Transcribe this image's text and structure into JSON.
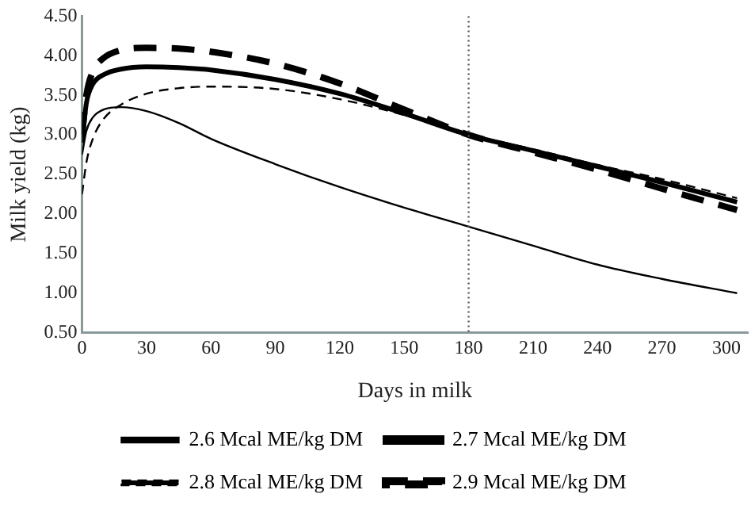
{
  "chart_data": {
    "type": "line",
    "xlabel": "Days in milk",
    "ylabel": "Milk yield (kg)",
    "xlim": [
      0,
      310
    ],
    "xticks": [
      0,
      30,
      60,
      90,
      120,
      150,
      180,
      210,
      240,
      270,
      300
    ],
    "ylim": [
      0.5,
      4.5
    ],
    "yticks": [
      {
        "value": 0.5,
        "label": "0.50"
      },
      {
        "value": 1,
        "label": "1.00"
      },
      {
        "value": 1.5,
        "label": "1.50"
      },
      {
        "value": 2,
        "label": "2.00"
      },
      {
        "value": 2.5,
        "label": "2.50"
      },
      {
        "value": 3,
        "label": "3.00"
      },
      {
        "value": 3.5,
        "label": "3.50"
      },
      {
        "value": 4,
        "label": "4.00"
      },
      {
        "value": 4.5,
        "label": "4.50"
      }
    ],
    "grid": false,
    "legend": "bottom",
    "marker": "none",
    "x": [
      0,
      2,
      5,
      10,
      18,
      30,
      45,
      60,
      90,
      120,
      150,
      180,
      210,
      240,
      270,
      305
    ],
    "series": [
      {
        "name": "2.6 Mcal ME/kg DM",
        "color": "#000000",
        "line_style": "solid",
        "values": [
          2.75,
          3.05,
          3.22,
          3.32,
          3.35,
          3.3,
          3.15,
          2.95,
          2.63,
          2.34,
          2.08,
          1.84,
          1.6,
          1.36,
          1.18,
          1.0
        ]
      },
      {
        "name": "2.7 Mcal ME/kg DM",
        "color": "#000000",
        "line_style": "solid",
        "values": [
          2.9,
          3.4,
          3.64,
          3.76,
          3.83,
          3.86,
          3.85,
          3.82,
          3.7,
          3.52,
          3.27,
          3.0,
          2.8,
          2.6,
          2.4,
          2.15
        ]
      },
      {
        "name": "2.8 Mcal ME/kg DM",
        "color": "#000000",
        "line_style": "dashed",
        "values": [
          2.25,
          2.65,
          2.95,
          3.2,
          3.38,
          3.52,
          3.59,
          3.61,
          3.58,
          3.45,
          3.25,
          3.0,
          2.82,
          2.62,
          2.44,
          2.2
        ]
      },
      {
        "name": "2.9 Mcal ME/kg DM",
        "color": "#000000",
        "line_style": "dashed",
        "values": [
          3.0,
          3.5,
          3.8,
          3.97,
          4.07,
          4.1,
          4.09,
          4.05,
          3.9,
          3.65,
          3.32,
          3.0,
          2.78,
          2.56,
          2.32,
          2.05
        ]
      }
    ],
    "ref_lines": [
      {
        "axis": "x",
        "value": 180,
        "color": "#555555",
        "line_style": "dotted"
      }
    ]
  }
}
